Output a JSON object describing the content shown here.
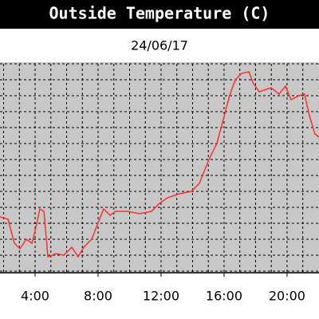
{
  "chart_data": {
    "type": "line",
    "title": "Outside Temperature (C)",
    "subtitle": "24/06/17",
    "x": [
      1.77,
      2.28,
      2.68,
      3.04,
      3.44,
      3.8,
      4.05,
      4.3,
      4.56,
      4.81,
      5.32,
      5.82,
      6.33,
      6.73,
      7.09,
      7.59,
      7.95,
      8.35,
      8.76,
      9.11,
      9.87,
      10.63,
      11.39,
      11.9,
      12.41,
      13.16,
      13.92,
      14.43,
      15.04,
      15.54,
      15.95,
      16.35,
      16.71,
      17.11,
      17.57,
      17.87,
      18.23,
      18.99,
      19.49,
      19.9,
      20.25,
      20.76,
      21.11,
      21.42,
      21.77,
      22.03
    ],
    "series": [
      {
        "name": "Outside Temperature",
        "color": "#ff3030",
        "values": [
          13.4,
          13.25,
          11.75,
          11.4,
          12.0,
          11.75,
          12.75,
          13.9,
          13.75,
          10.9,
          11.1,
          11.0,
          11.5,
          10.9,
          11.5,
          12.0,
          12.9,
          13.9,
          13.5,
          13.75,
          13.75,
          13.6,
          13.75,
          14.25,
          14.6,
          14.85,
          15.0,
          15.5,
          17.0,
          18.0,
          19.5,
          21.0,
          22.0,
          22.4,
          22.5,
          21.75,
          21.25,
          21.5,
          21.1,
          21.6,
          20.75,
          21.0,
          21.1,
          19.75,
          18.6,
          18.4
        ]
      }
    ],
    "xlim": [
      1.77,
      22.03
    ],
    "xticks": [
      {
        "value": 4,
        "label": "4:00"
      },
      {
        "value": 8,
        "label": "8:00"
      },
      {
        "value": 12,
        "label": "12:00"
      },
      {
        "value": 16,
        "label": "16:00"
      },
      {
        "value": 20,
        "label": "20:00"
      }
    ],
    "x_grid_lines": [
      2,
      3,
      4,
      5,
      6,
      7,
      8,
      9,
      10,
      11,
      12,
      13,
      14,
      15,
      16,
      17,
      18,
      19,
      20,
      21
    ],
    "ylim": [
      9.9,
      23.0
    ],
    "yticks": [
      10,
      11,
      12,
      13,
      14,
      15,
      16,
      17,
      18,
      19,
      20,
      21,
      22,
      23
    ],
    "grid": true
  }
}
